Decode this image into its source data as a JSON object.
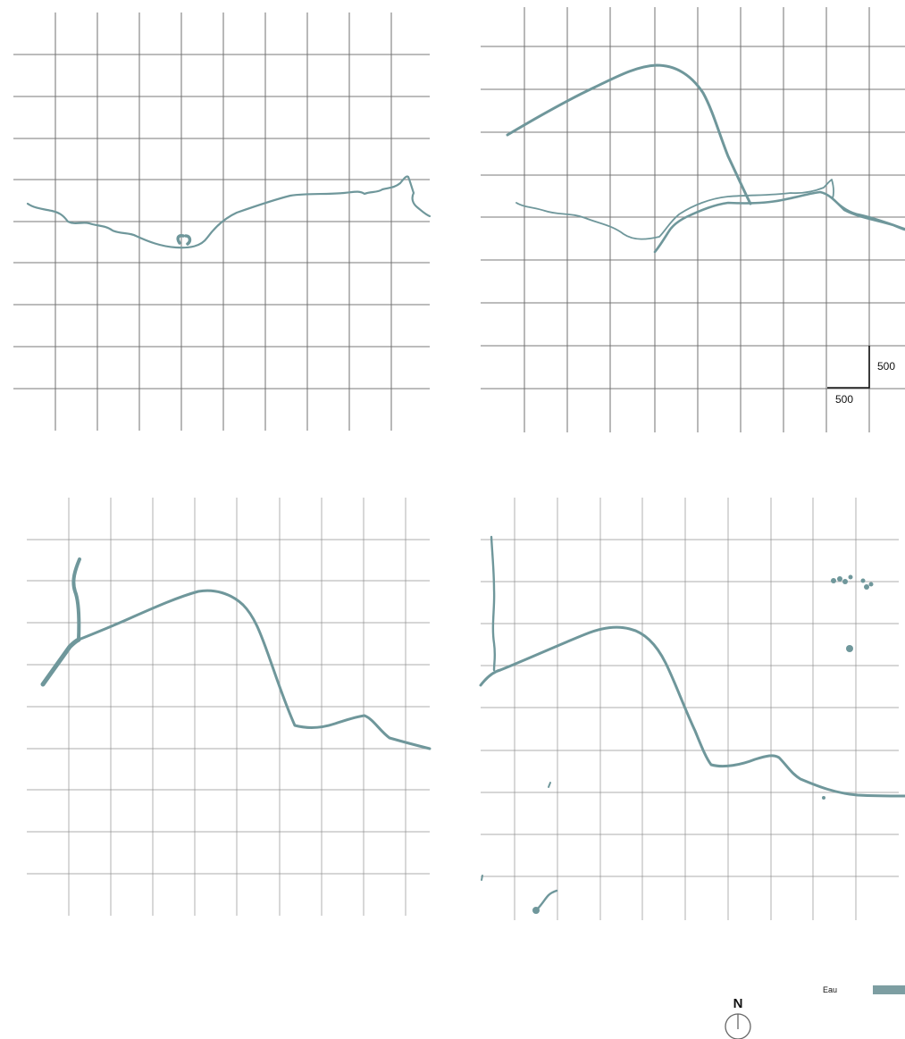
{
  "scale_bar": {
    "horizontal_label": "500",
    "vertical_label": "500"
  },
  "north_arrow": {
    "label": "N",
    "icon": "north-arrow-icon"
  },
  "legend": {
    "items": [
      {
        "label": "Eau",
        "color": "#7d9ea2"
      }
    ]
  },
  "colors": {
    "water": "#6f979b",
    "grid": "#6f6f6f"
  }
}
